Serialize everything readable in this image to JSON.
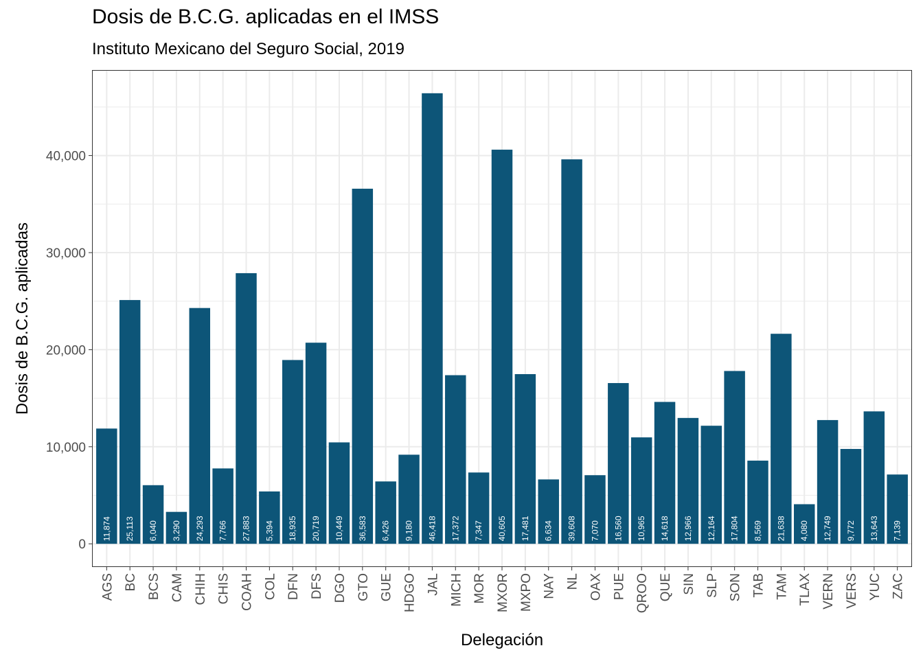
{
  "chart_data": {
    "type": "bar",
    "title": "Dosis de B.C.G. aplicadas en el IMSS",
    "subtitle": "Instituto Mexicano del Seguro Social, 2019",
    "xlabel": "Delegación",
    "ylabel": "Dosis de B.C.G. aplicadas",
    "categories": [
      "AGS",
      "BC",
      "BCS",
      "CAM",
      "CHIH",
      "CHIS",
      "COAH",
      "COL",
      "DFN",
      "DFS",
      "DGO",
      "GTO",
      "GUE",
      "HDGO",
      "JAL",
      "MICH",
      "MOR",
      "MXOR",
      "MXPO",
      "NAY",
      "NL",
      "OAX",
      "PUE",
      "QROO",
      "QUE",
      "SIN",
      "SLP",
      "SON",
      "TAB",
      "TAM",
      "TLAX",
      "VERN",
      "VERS",
      "YUC",
      "ZAC"
    ],
    "values": [
      11874,
      25113,
      6040,
      3290,
      24293,
      7766,
      27883,
      5394,
      18935,
      20719,
      10449,
      36583,
      6426,
      9180,
      46418,
      17372,
      7347,
      40605,
      17481,
      6634,
      39608,
      7070,
      16560,
      10965,
      14618,
      12966,
      12164,
      17804,
      8569,
      21638,
      4080,
      12749,
      9772,
      13643,
      7139
    ],
    "value_labels": [
      "11,874",
      "25,113",
      "6,040",
      "3,290",
      "24,293",
      "7,766",
      "27,883",
      "5,394",
      "18,935",
      "20,719",
      "10,449",
      "36,583",
      "6,426",
      "9,180",
      "46,418",
      "17,372",
      "7,347",
      "40,605",
      "17,481",
      "6,634",
      "39,608",
      "7,070",
      "16,560",
      "10,965",
      "14,618",
      "12,966",
      "12,164",
      "17,804",
      "8,569",
      "21,638",
      "4,080",
      "12,749",
      "9,772",
      "13,643",
      "7,139"
    ],
    "yticks": [
      0,
      10000,
      20000,
      30000,
      40000
    ],
    "ytick_labels": [
      "0",
      "10,000",
      "20,000",
      "30,000",
      "40,000"
    ],
    "ylim": [
      -2320,
      48740
    ],
    "grid": true,
    "bar_color": "#0d5578",
    "grid_color": "#ebebeb"
  }
}
